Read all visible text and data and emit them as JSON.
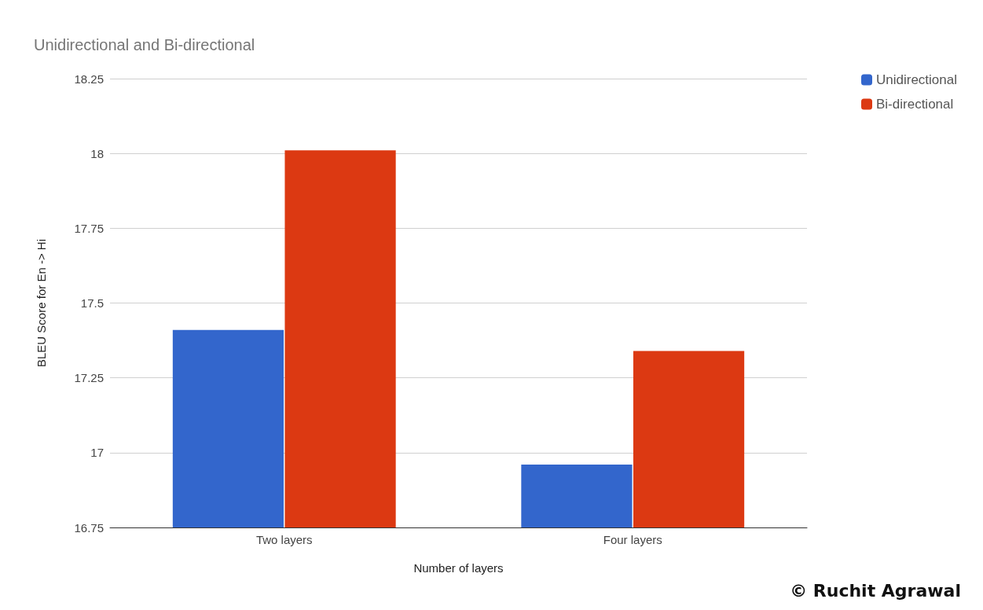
{
  "chart_data": {
    "type": "bar",
    "title": "Unidirectional and Bi-directional",
    "xlabel": "Number of layers",
    "ylabel": "BLEU Score for En -> Hi",
    "categories": [
      "Two layers",
      "Four layers"
    ],
    "series": [
      {
        "name": "Unidirectional",
        "color": "#3366cc",
        "values": [
          17.41,
          16.96
        ]
      },
      {
        "name": "Bi-directional",
        "color": "#dc3912",
        "values": [
          18.01,
          17.34
        ]
      }
    ],
    "ylim": [
      16.75,
      18.25
    ],
    "yticks": [
      16.75,
      17,
      17.25,
      17.5,
      17.75,
      18,
      18.25
    ],
    "grid": "y",
    "legend": "top right",
    "annotations": [
      "© Ruchit Agrawal"
    ]
  }
}
